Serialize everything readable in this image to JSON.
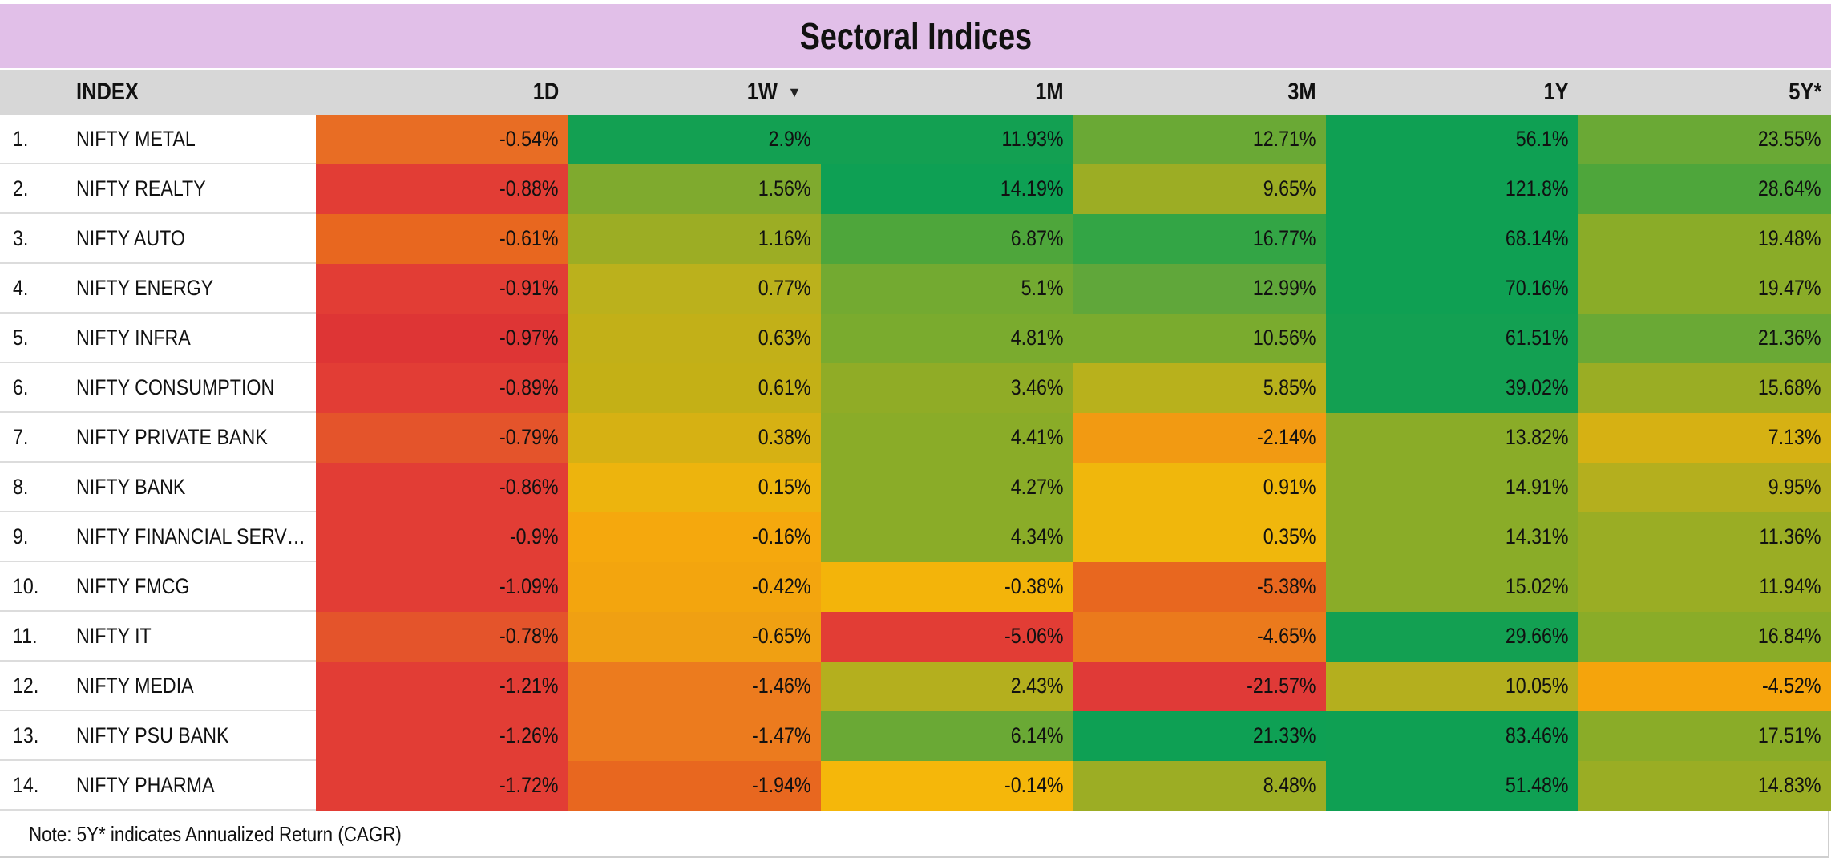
{
  "title": "Sectoral Indices",
  "headers": {
    "num": "",
    "index": "INDEX",
    "d1": "1D",
    "w1": "1W",
    "m1": "1M",
    "m3": "3M",
    "y1": "1Y",
    "y5": "5Y*"
  },
  "sort_icon": "sort-descending-icon",
  "rows": [
    {
      "num": "1.",
      "name": "NIFTY METAL",
      "values": [
        "-0.54%",
        "2.9%",
        "11.93%",
        "12.71%",
        "56.1%",
        "23.55%"
      ]
    },
    {
      "num": "2.",
      "name": "NIFTY REALTY",
      "values": [
        "-0.88%",
        "1.56%",
        "14.19%",
        "9.65%",
        "121.8%",
        "28.64%"
      ]
    },
    {
      "num": "3.",
      "name": "NIFTY AUTO",
      "values": [
        "-0.61%",
        "1.16%",
        "6.87%",
        "16.77%",
        "68.14%",
        "19.48%"
      ]
    },
    {
      "num": "4.",
      "name": "NIFTY ENERGY",
      "values": [
        "-0.91%",
        "0.77%",
        "5.1%",
        "12.99%",
        "70.16%",
        "19.47%"
      ]
    },
    {
      "num": "5.",
      "name": "NIFTY INFRA",
      "values": [
        "-0.97%",
        "0.63%",
        "4.81%",
        "10.56%",
        "61.51%",
        "21.36%"
      ]
    },
    {
      "num": "6.",
      "name": "NIFTY CONSUMPTION",
      "values": [
        "-0.89%",
        "0.61%",
        "3.46%",
        "5.85%",
        "39.02%",
        "15.68%"
      ]
    },
    {
      "num": "7.",
      "name": "NIFTY PRIVATE BANK",
      "values": [
        "-0.79%",
        "0.38%",
        "4.41%",
        "-2.14%",
        "13.82%",
        "7.13%"
      ]
    },
    {
      "num": "8.",
      "name": "NIFTY BANK",
      "values": [
        "-0.86%",
        "0.15%",
        "4.27%",
        "0.91%",
        "14.91%",
        "9.95%"
      ]
    },
    {
      "num": "9.",
      "name": "NIFTY FINANCIAL SERV…",
      "values": [
        "-0.9%",
        "-0.16%",
        "4.34%",
        "0.35%",
        "14.31%",
        "11.36%"
      ]
    },
    {
      "num": "10.",
      "name": "NIFTY FMCG",
      "values": [
        "-1.09%",
        "-0.42%",
        "-0.38%",
        "-5.38%",
        "15.02%",
        "11.94%"
      ]
    },
    {
      "num": "11.",
      "name": "NIFTY IT",
      "values": [
        "-0.78%",
        "-0.65%",
        "-5.06%",
        "-4.65%",
        "29.66%",
        "16.84%"
      ]
    },
    {
      "num": "12.",
      "name": "NIFTY MEDIA",
      "values": [
        "-1.21%",
        "-1.46%",
        "2.43%",
        "-21.57%",
        "10.05%",
        "-4.52%"
      ]
    },
    {
      "num": "13.",
      "name": "NIFTY PSU BANK",
      "values": [
        "-1.26%",
        "-1.47%",
        "6.14%",
        "21.33%",
        "83.46%",
        "17.51%"
      ]
    },
    {
      "num": "14.",
      "name": "NIFTY PHARMA",
      "values": [
        "-1.72%",
        "-1.94%",
        "-0.14%",
        "8.48%",
        "51.48%",
        "14.83%"
      ]
    }
  ],
  "colors": [
    [
      "#e86d24",
      "#13a052",
      "#13a052",
      "#6aa935",
      "#0fa053",
      "#6aa935"
    ],
    [
      "#e23d35",
      "#7faa2e",
      "#0ea054",
      "#9cad24",
      "#0fa053",
      "#4ea63b"
    ],
    [
      "#e8671f",
      "#9cad24",
      "#4ea63b",
      "#33a545",
      "#0fa053",
      "#8aac28"
    ],
    [
      "#e23d35",
      "#bbb11c",
      "#73aa31",
      "#60a73a",
      "#0fa053",
      "#8aac28"
    ],
    [
      "#de3535",
      "#c2b018",
      "#7aab2e",
      "#7aab2e",
      "#13a052",
      "#6aa935"
    ],
    [
      "#e23d35",
      "#c4b016",
      "#90ac26",
      "#b8b11c",
      "#13a052",
      "#9aad24"
    ],
    [
      "#e4542b",
      "#d6b113",
      "#8aac28",
      "#f29a12",
      "#8aac28",
      "#d6b113"
    ],
    [
      "#e23d35",
      "#edb40d",
      "#8aac28",
      "#f0b70c",
      "#8aac28",
      "#b4af1e"
    ],
    [
      "#e23d35",
      "#f5a80d",
      "#8aac28",
      "#f0b70c",
      "#8aac28",
      "#9aad24"
    ],
    [
      "#e23d35",
      "#f3a50e",
      "#f3b40a",
      "#e8671f",
      "#8aac28",
      "#9aad24"
    ],
    [
      "#e4542b",
      "#f0a012",
      "#e23d35",
      "#eb7a1c",
      "#13a052",
      "#8aac28"
    ],
    [
      "#e23d35",
      "#ec7b1e",
      "#b4af1e",
      "#e03a37",
      "#b4af1e",
      "#f5a40c"
    ],
    [
      "#e23d35",
      "#ec7b1e",
      "#6aa935",
      "#0ea054",
      "#0fa053",
      "#8aac28"
    ],
    [
      "#e23d35",
      "#e8671f",
      "#f5b70a",
      "#9cad24",
      "#0fa053",
      "#9aad24"
    ]
  ],
  "note": "Note: 5Y* indicates Annualized Return (CAGR)"
}
